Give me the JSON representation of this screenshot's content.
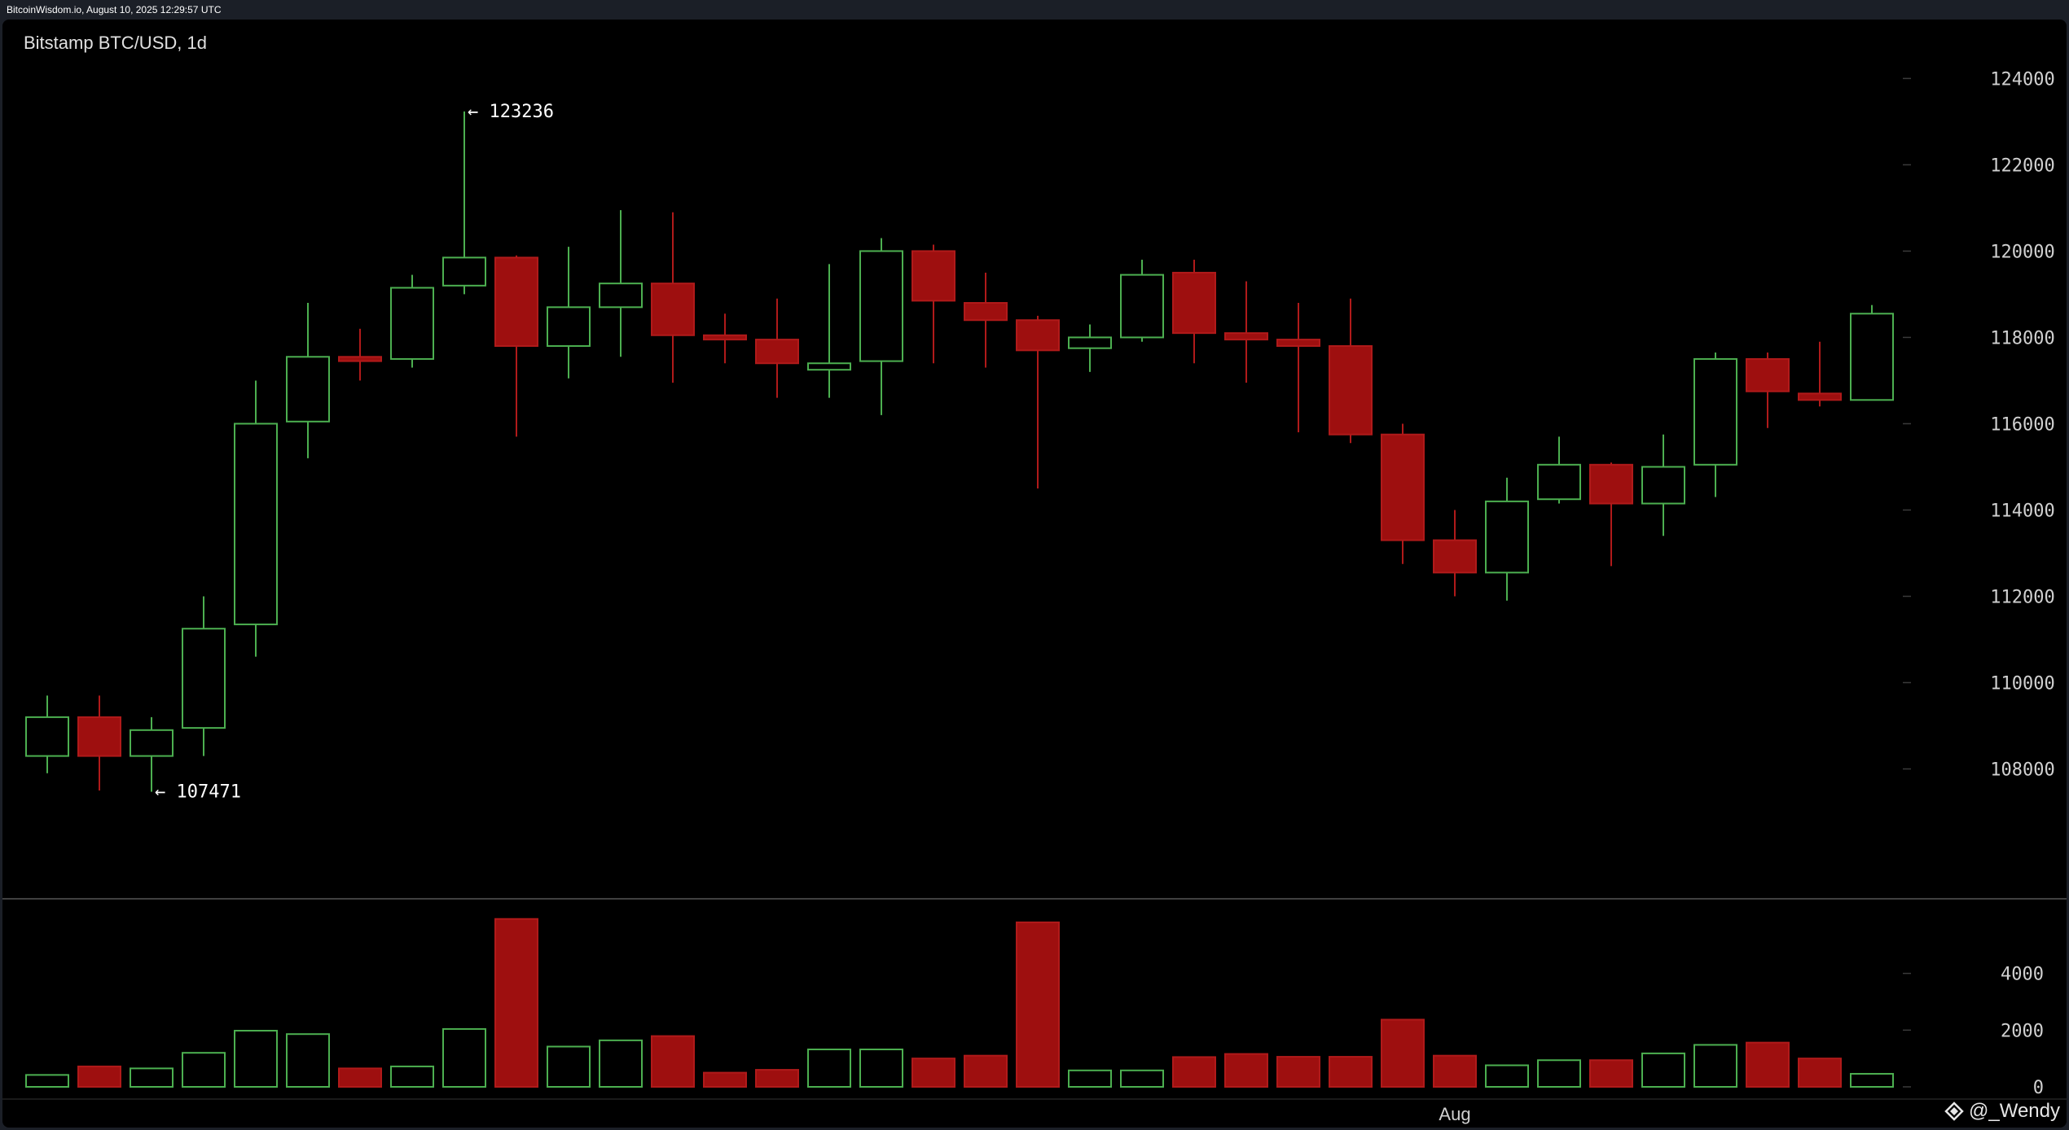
{
  "header": {
    "source_text": "BitcoinWisdom.io, August 10, 2025 12:29:57 UTC"
  },
  "watermark": {
    "text": "@_Wendy",
    "icon": "diamond-logo-icon"
  },
  "colors": {
    "up": "#4caf50",
    "down": "#9e0f0f",
    "down_fill": "#9e0f0f",
    "axis_text": "#d0d0d0",
    "grid": "#3a3a3a",
    "bg": "#000000"
  },
  "chart_data": {
    "type": "candlestick",
    "title": "Bitstamp BTC/USD, 1d",
    "price_axis": {
      "min": 106500,
      "max": 124800,
      "ticks": [
        108000,
        110000,
        112000,
        114000,
        116000,
        118000,
        120000,
        122000,
        124000
      ]
    },
    "volume_axis": {
      "min": 0,
      "max": 6200,
      "ticks": [
        0,
        2000,
        4000
      ]
    },
    "x_labels": [
      {
        "label": "Aug",
        "index": 27
      }
    ],
    "annotations": [
      {
        "text": "← 123236",
        "value": 123236,
        "index": 8
      },
      {
        "text": "← 107471",
        "value": 107471,
        "index": 2
      }
    ],
    "candles": [
      {
        "o": 108300,
        "h": 109700,
        "l": 107900,
        "c": 109200,
        "v": 420
      },
      {
        "o": 109200,
        "h": 109700,
        "l": 107500,
        "c": 108300,
        "v": 720
      },
      {
        "o": 108300,
        "h": 109200,
        "l": 107471,
        "c": 108900,
        "v": 650
      },
      {
        "o": 108950,
        "h": 112000,
        "l": 108300,
        "c": 111250,
        "v": 1200
      },
      {
        "o": 111350,
        "h": 117000,
        "l": 110600,
        "c": 116000,
        "v": 1980
      },
      {
        "o": 116050,
        "h": 118800,
        "l": 115200,
        "c": 117550,
        "v": 1860
      },
      {
        "o": 117550,
        "h": 118200,
        "l": 117000,
        "c": 117450,
        "v": 650
      },
      {
        "o": 117500,
        "h": 119450,
        "l": 117300,
        "c": 119150,
        "v": 720
      },
      {
        "o": 119200,
        "h": 123236,
        "l": 119000,
        "c": 119850,
        "v": 2040
      },
      {
        "o": 119850,
        "h": 119900,
        "l": 115700,
        "c": 117800,
        "v": 5920
      },
      {
        "o": 117800,
        "h": 120100,
        "l": 117050,
        "c": 118700,
        "v": 1420
      },
      {
        "o": 118700,
        "h": 120950,
        "l": 117550,
        "c": 119250,
        "v": 1640
      },
      {
        "o": 119250,
        "h": 120900,
        "l": 116950,
        "c": 118050,
        "v": 1790
      },
      {
        "o": 118050,
        "h": 118550,
        "l": 117400,
        "c": 117950,
        "v": 500
      },
      {
        "o": 117950,
        "h": 118900,
        "l": 116600,
        "c": 117400,
        "v": 600
      },
      {
        "o": 117250,
        "h": 119700,
        "l": 116600,
        "c": 117400,
        "v": 1320
      },
      {
        "o": 117450,
        "h": 120300,
        "l": 116200,
        "c": 120000,
        "v": 1320
      },
      {
        "o": 120000,
        "h": 120150,
        "l": 117400,
        "c": 118850,
        "v": 1000
      },
      {
        "o": 118800,
        "h": 119500,
        "l": 117300,
        "c": 118400,
        "v": 1100
      },
      {
        "o": 118400,
        "h": 118500,
        "l": 114500,
        "c": 117700,
        "v": 5800
      },
      {
        "o": 117750,
        "h": 118300,
        "l": 117200,
        "c": 118000,
        "v": 580
      },
      {
        "o": 118000,
        "h": 119800,
        "l": 117900,
        "c": 119450,
        "v": 580
      },
      {
        "o": 119500,
        "h": 119800,
        "l": 117400,
        "c": 118100,
        "v": 1050
      },
      {
        "o": 118100,
        "h": 119300,
        "l": 116950,
        "c": 117950,
        "v": 1160
      },
      {
        "o": 117950,
        "h": 118800,
        "l": 115800,
        "c": 117800,
        "v": 1060
      },
      {
        "o": 117800,
        "h": 118900,
        "l": 115550,
        "c": 115750,
        "v": 1060
      },
      {
        "o": 115750,
        "h": 116000,
        "l": 112750,
        "c": 113300,
        "v": 2370
      },
      {
        "o": 113300,
        "h": 114000,
        "l": 112000,
        "c": 112550,
        "v": 1100
      },
      {
        "o": 112550,
        "h": 114750,
        "l": 111900,
        "c": 114200,
        "v": 760
      },
      {
        "o": 114250,
        "h": 115700,
        "l": 114150,
        "c": 115050,
        "v": 940
      },
      {
        "o": 115050,
        "h": 115100,
        "l": 112700,
        "c": 114150,
        "v": 940
      },
      {
        "o": 114150,
        "h": 115750,
        "l": 113400,
        "c": 115000,
        "v": 1180
      },
      {
        "o": 115050,
        "h": 117650,
        "l": 114300,
        "c": 117500,
        "v": 1480
      },
      {
        "o": 117500,
        "h": 117650,
        "l": 115900,
        "c": 116750,
        "v": 1560
      },
      {
        "o": 116700,
        "h": 117900,
        "l": 116400,
        "c": 116550,
        "v": 1000
      },
      {
        "o": 116550,
        "h": 118750,
        "l": 116550,
        "c": 118550,
        "v": 460
      }
    ]
  }
}
